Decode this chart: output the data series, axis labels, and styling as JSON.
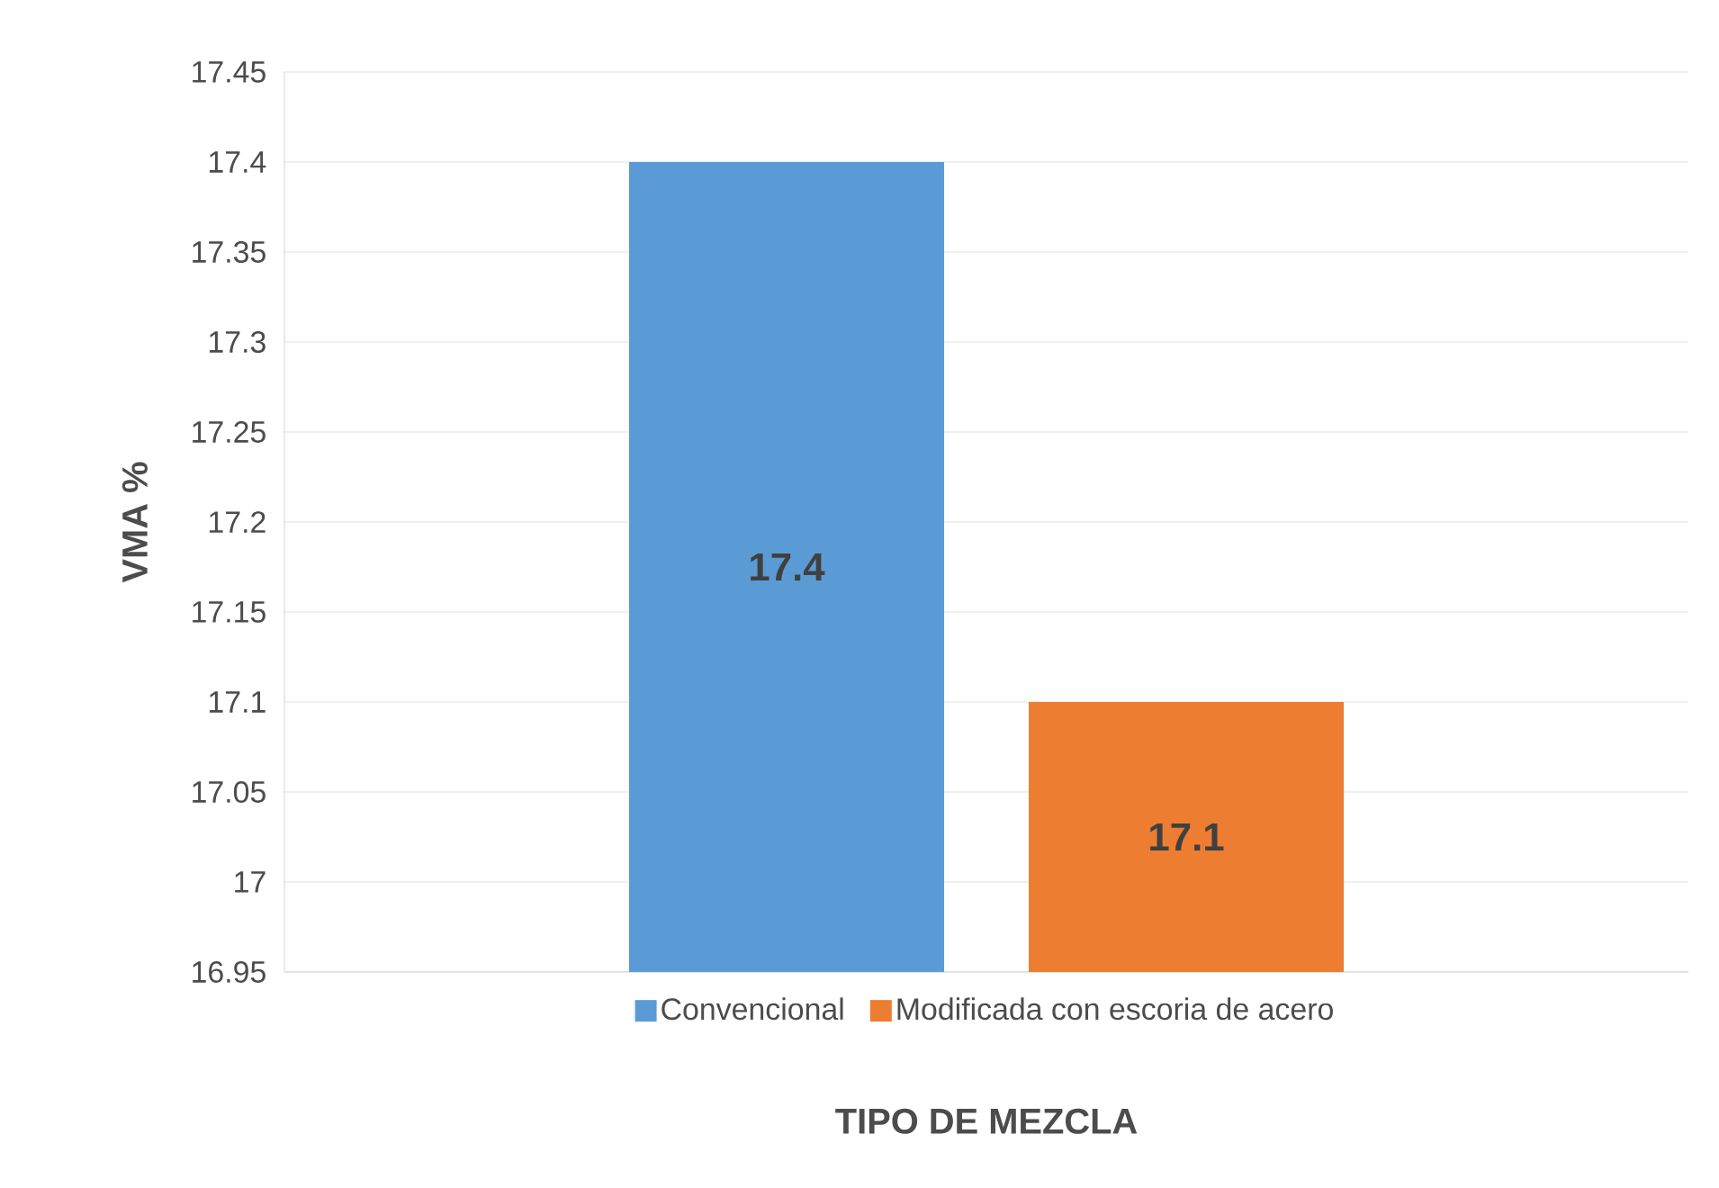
{
  "chart_data": {
    "type": "bar",
    "xlabel": "TIPO DE MEZCLA",
    "ylabel": "VMA %",
    "categories": [
      null
    ],
    "series": [
      {
        "name": "Convencional",
        "color": "#5b9bd5",
        "values": [
          17.4
        ]
      },
      {
        "name": "Modificada con escoria de acero",
        "color": "#ed7d31",
        "values": [
          17.1
        ]
      }
    ],
    "ylim": [
      16.95,
      17.45
    ],
    "yticks": [
      16.95,
      17,
      17.05,
      17.1,
      17.15,
      17.2,
      17.25,
      17.3,
      17.35,
      17.4,
      17.45
    ],
    "grid": "y",
    "legend": "bottom",
    "data_labels": true
  }
}
